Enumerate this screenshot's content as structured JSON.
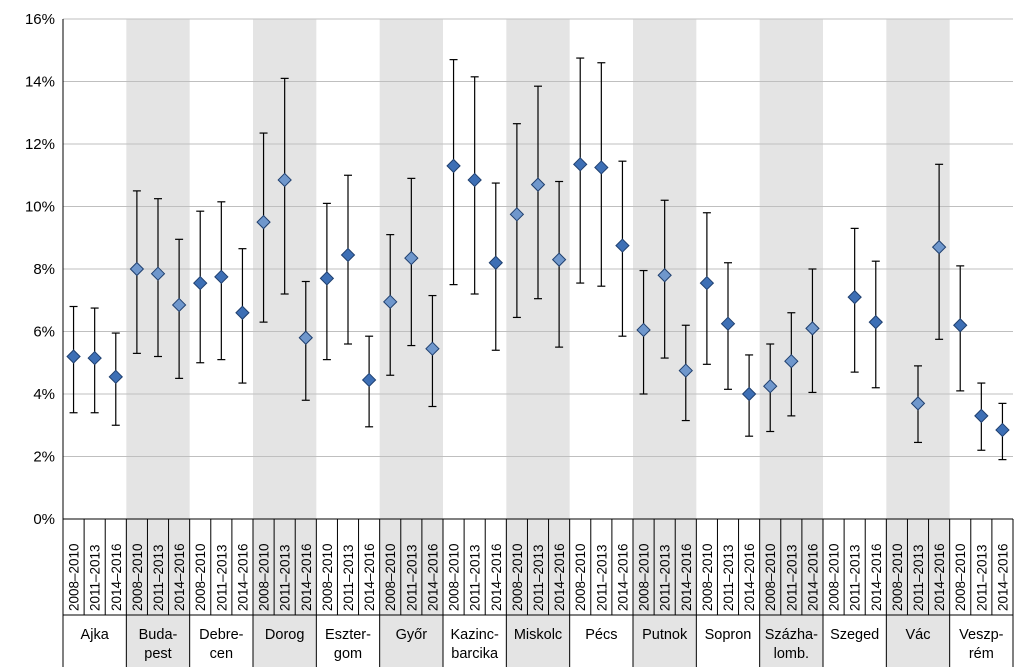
{
  "chart_data": {
    "type": "scatter",
    "title": "",
    "xlabel": "",
    "ylabel": "",
    "ylim": [
      0,
      16
    ],
    "y_ticks": [
      "0%",
      "2%",
      "4%",
      "6%",
      "8%",
      "10%",
      "12%",
      "14%",
      "16%"
    ],
    "grid": "horizontal",
    "legend": "none",
    "periods": [
      "2008–2010",
      "2011–2013",
      "2014–2016"
    ],
    "colors": {
      "marker_dark": "#3d6fb5",
      "marker_light": "#6f97cc",
      "marker_stroke": "#1f3f6e",
      "band": "#e4e4e4",
      "error_bar": "#000000",
      "grid": "#bfbfbf"
    },
    "groups": [
      {
        "city": [
          "Ajka"
        ],
        "shaded": false,
        "points": [
          {
            "period": "2008–2010",
            "y": 5.2,
            "low": 3.4,
            "high": 6.8
          },
          {
            "period": "2011–2013",
            "y": 5.15,
            "low": 3.4,
            "high": 6.75
          },
          {
            "period": "2014–2016",
            "y": 4.55,
            "low": 3.0,
            "high": 5.95
          }
        ]
      },
      {
        "city": [
          "Buda-",
          "pest"
        ],
        "shaded": true,
        "points": [
          {
            "period": "2008–2010",
            "y": 8.0,
            "low": 5.3,
            "high": 10.5
          },
          {
            "period": "2011–2013",
            "y": 7.85,
            "low": 5.2,
            "high": 10.25
          },
          {
            "period": "2014–2016",
            "y": 6.85,
            "low": 4.5,
            "high": 8.95
          }
        ]
      },
      {
        "city": [
          "Debre-",
          "cen"
        ],
        "shaded": false,
        "points": [
          {
            "period": "2008–2010",
            "y": 7.55,
            "low": 5.0,
            "high": 9.85
          },
          {
            "period": "2011–2013",
            "y": 7.75,
            "low": 5.1,
            "high": 10.15
          },
          {
            "period": "2014–2016",
            "y": 6.6,
            "low": 4.35,
            "high": 8.65
          }
        ]
      },
      {
        "city": [
          "Dorog"
        ],
        "shaded": true,
        "points": [
          {
            "period": "2008–2010",
            "y": 9.5,
            "low": 6.3,
            "high": 12.35
          },
          {
            "period": "2011–2013",
            "y": 10.85,
            "low": 7.2,
            "high": 14.1
          },
          {
            "period": "2014–2016",
            "y": 5.8,
            "low": 3.8,
            "high": 7.6
          }
        ]
      },
      {
        "city": [
          "Eszter-",
          "gom"
        ],
        "shaded": false,
        "points": [
          {
            "period": "2008–2010",
            "y": 7.7,
            "low": 5.1,
            "high": 10.1
          },
          {
            "period": "2011–2013",
            "y": 8.45,
            "low": 5.6,
            "high": 11.0
          },
          {
            "period": "2014–2016",
            "y": 4.45,
            "low": 2.95,
            "high": 5.85
          }
        ]
      },
      {
        "city": [
          "Győr"
        ],
        "shaded": true,
        "points": [
          {
            "period": "2008–2010",
            "y": 6.95,
            "low": 4.6,
            "high": 9.1
          },
          {
            "period": "2011–2013",
            "y": 8.35,
            "low": 5.55,
            "high": 10.9
          },
          {
            "period": "2014–2016",
            "y": 5.45,
            "low": 3.6,
            "high": 7.15
          }
        ]
      },
      {
        "city": [
          "Kazinc-",
          "barcika"
        ],
        "shaded": false,
        "points": [
          {
            "period": "2008–2010",
            "y": 11.3,
            "low": 7.5,
            "high": 14.7
          },
          {
            "period": "2011–2013",
            "y": 10.85,
            "low": 7.2,
            "high": 14.15
          },
          {
            "period": "2014–2016",
            "y": 8.2,
            "low": 5.4,
            "high": 10.75
          }
        ]
      },
      {
        "city": [
          "Miskolc"
        ],
        "shaded": true,
        "points": [
          {
            "period": "2008–2010",
            "y": 9.75,
            "low": 6.45,
            "high": 12.65
          },
          {
            "period": "2011–2013",
            "y": 10.7,
            "low": 7.05,
            "high": 13.85
          },
          {
            "period": "2014–2016",
            "y": 8.3,
            "low": 5.5,
            "high": 10.8
          }
        ]
      },
      {
        "city": [
          "Pécs"
        ],
        "shaded": false,
        "points": [
          {
            "period": "2008–2010",
            "y": 11.35,
            "low": 7.55,
            "high": 14.75
          },
          {
            "period": "2011–2013",
            "y": 11.25,
            "low": 7.45,
            "high": 14.6
          },
          {
            "period": "2014–2016",
            "y": 8.75,
            "low": 5.85,
            "high": 11.45
          }
        ]
      },
      {
        "city": [
          "Putnok"
        ],
        "shaded": true,
        "points": [
          {
            "period": "2008–2010",
            "y": 6.05,
            "low": 4.0,
            "high": 7.95
          },
          {
            "period": "2011–2013",
            "y": 7.8,
            "low": 5.15,
            "high": 10.2
          },
          {
            "period": "2014–2016",
            "y": 4.75,
            "low": 3.15,
            "high": 6.2
          }
        ]
      },
      {
        "city": [
          "Sopron"
        ],
        "shaded": false,
        "points": [
          {
            "period": "2008–2010",
            "y": 7.55,
            "low": 4.95,
            "high": 9.8
          },
          {
            "period": "2011–2013",
            "y": 6.25,
            "low": 4.15,
            "high": 8.2
          },
          {
            "period": "2014–2016",
            "y": 4.0,
            "low": 2.65,
            "high": 5.25
          }
        ]
      },
      {
        "city": [
          "Százha-",
          "lomb."
        ],
        "shaded": true,
        "points": [
          {
            "period": "2008–2010",
            "y": 4.25,
            "low": 2.8,
            "high": 5.6
          },
          {
            "period": "2011–2013",
            "y": 5.05,
            "low": 3.3,
            "high": 6.6
          },
          {
            "period": "2014–2016",
            "y": 6.1,
            "low": 4.05,
            "high": 8.0
          }
        ]
      },
      {
        "city": [
          "Szeged"
        ],
        "shaded": false,
        "points": [
          {
            "period": "2008–2010",
            "y": null,
            "low": null,
            "high": null
          },
          {
            "period": "2011–2013",
            "y": 7.1,
            "low": 4.7,
            "high": 9.3
          },
          {
            "period": "2014–2016",
            "y": 6.3,
            "low": 4.2,
            "high": 8.25
          }
        ]
      },
      {
        "city": [
          "Vác"
        ],
        "shaded": true,
        "points": [
          {
            "period": "2008–2010",
            "y": null,
            "low": null,
            "high": null
          },
          {
            "period": "2011–2013",
            "y": 3.7,
            "low": 2.45,
            "high": 4.9
          },
          {
            "period": "2014–2016",
            "y": 8.7,
            "low": 5.75,
            "high": 11.35
          }
        ]
      },
      {
        "city": [
          "Veszp-",
          "rém"
        ],
        "shaded": false,
        "points": [
          {
            "period": "2008–2010",
            "y": 6.2,
            "low": 4.1,
            "high": 8.1
          },
          {
            "period": "2011–2013",
            "y": 3.3,
            "low": 2.2,
            "high": 4.35
          },
          {
            "period": "2014–2016",
            "y": 2.85,
            "low": 1.9,
            "high": 3.7
          }
        ]
      }
    ]
  }
}
